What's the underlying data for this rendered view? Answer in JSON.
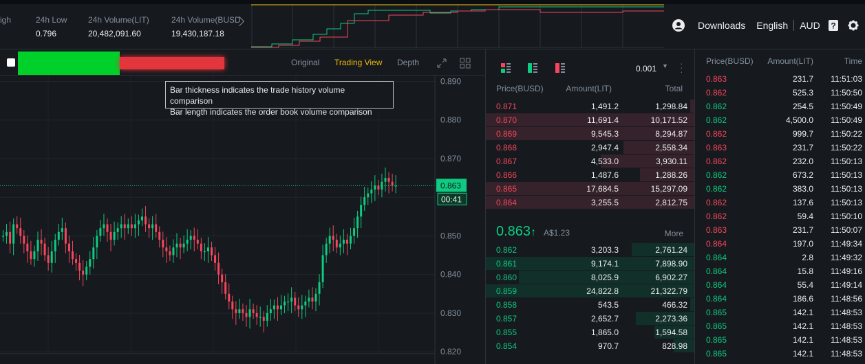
{
  "header": {
    "stats": [
      {
        "label": "igh",
        "value": "",
        "left": 0
      },
      {
        "label": "24h Low",
        "value": "0.796",
        "left": 52
      },
      {
        "label": "24h Volume(LIT)",
        "value": "20,482,091.60",
        "left": 128
      },
      {
        "label": "24h Volume(BUSD",
        "value": "19,430,187.18",
        "left": 249
      }
    ],
    "nav": {
      "downloads": "Downloads",
      "language": "English",
      "currency": "AUD"
    }
  },
  "toolbar": {
    "original": "Original",
    "trading_view": "Trading View",
    "depth": "Depth"
  },
  "tooltip": {
    "line1": "Bar thickness indicates the trade history volume comparison",
    "line2": "Bar length indicates the order book volume comparison"
  },
  "chart_data": {
    "type": "candlestick",
    "y_ticks": [
      "0.890",
      "0.880",
      "0.870",
      "0.860",
      "0.850",
      "0.840",
      "0.830",
      "0.820"
    ],
    "last_price_label": "0.863",
    "countdown_label": "00:41",
    "ylim": [
      0.8195,
      0.8915
    ]
  },
  "order_book": {
    "step": "0.001",
    "columns": {
      "price": "Price(BUSD)",
      "amount": "Amount(LIT)",
      "total": "Total"
    },
    "asks": [
      {
        "price": "0.871",
        "amount": "1,491.2",
        "total": "1,298.84",
        "depth": 0.02
      },
      {
        "price": "0.870",
        "amount": "11,691.4",
        "total": "10,171.52",
        "depth": 1.0
      },
      {
        "price": "0.869",
        "amount": "9,545.3",
        "total": "8,294.87",
        "depth": 1.0
      },
      {
        "price": "0.868",
        "amount": "2,947.4",
        "total": "2,558.34",
        "depth": 0.34
      },
      {
        "price": "0.867",
        "amount": "4,533.0",
        "total": "3,930.11",
        "depth": 0.45
      },
      {
        "price": "0.866",
        "amount": "1,487.6",
        "total": "1,288.26",
        "depth": 0.26
      },
      {
        "price": "0.865",
        "amount": "17,684.5",
        "total": "15,297.09",
        "depth": 1.0
      },
      {
        "price": "0.864",
        "amount": "3,255.5",
        "total": "2,812.75",
        "depth": 1.0
      }
    ],
    "last": {
      "price": "0.863",
      "arrow": "↑",
      "fiat": "A$1.23",
      "more": "More"
    },
    "bids": [
      {
        "price": "0.862",
        "amount": "3,203.3",
        "total": "2,761.24",
        "depth": 0.3
      },
      {
        "price": "0.861",
        "amount": "9,174.1",
        "total": "7,898.90",
        "depth": 1.0
      },
      {
        "price": "0.860",
        "amount": "8,025.9",
        "total": "6,902.27",
        "depth": 0.84
      },
      {
        "price": "0.859",
        "amount": "24,822.8",
        "total": "21,322.79",
        "depth": 1.0
      },
      {
        "price": "0.858",
        "amount": "543.5",
        "total": "466.32",
        "depth": 0.02
      },
      {
        "price": "0.857",
        "amount": "2,652.7",
        "total": "2,273.36",
        "depth": 0.28
      },
      {
        "price": "0.855",
        "amount": "1,865.0",
        "total": "1,594.58",
        "depth": 0.19
      },
      {
        "price": "0.854",
        "amount": "970.7",
        "total": "828.98",
        "depth": 0.1
      }
    ]
  },
  "trades": {
    "columns": {
      "price": "Price(BUSD)",
      "amount": "Amount(LIT)",
      "time": "Time"
    },
    "rows": [
      {
        "price": "0.863",
        "amount": "231.7",
        "time": "11:51:03",
        "side": "sell"
      },
      {
        "price": "0.862",
        "amount": "525.3",
        "time": "11:50:50",
        "side": "sell"
      },
      {
        "price": "0.862",
        "amount": "254.5",
        "time": "11:50:49",
        "side": "buy"
      },
      {
        "price": "0.862",
        "amount": "4,500.0",
        "time": "11:50:49",
        "side": "buy"
      },
      {
        "price": "0.862",
        "amount": "999.7",
        "time": "11:50:22",
        "side": "sell"
      },
      {
        "price": "0.863",
        "amount": "231.7",
        "time": "11:50:22",
        "side": "sell"
      },
      {
        "price": "0.862",
        "amount": "232.0",
        "time": "11:50:13",
        "side": "sell"
      },
      {
        "price": "0.862",
        "amount": "673.2",
        "time": "11:50:13",
        "side": "buy"
      },
      {
        "price": "0.862",
        "amount": "383.0",
        "time": "11:50:13",
        "side": "buy"
      },
      {
        "price": "0.862",
        "amount": "137.6",
        "time": "11:50:13",
        "side": "sell"
      },
      {
        "price": "0.862",
        "amount": "59.4",
        "time": "11:50:10",
        "side": "sell"
      },
      {
        "price": "0.863",
        "amount": "231.7",
        "time": "11:50:07",
        "side": "sell"
      },
      {
        "price": "0.864",
        "amount": "197.0",
        "time": "11:49:34",
        "side": "sell"
      },
      {
        "price": "0.864",
        "amount": "2.8",
        "time": "11:49:32",
        "side": "buy"
      },
      {
        "price": "0.864",
        "amount": "15.8",
        "time": "11:49:16",
        "side": "buy"
      },
      {
        "price": "0.864",
        "amount": "55.4",
        "time": "11:49:14",
        "side": "buy"
      },
      {
        "price": "0.864",
        "amount": "186.6",
        "time": "11:48:56",
        "side": "buy"
      },
      {
        "price": "0.865",
        "amount": "142.1",
        "time": "11:48:53",
        "side": "buy"
      },
      {
        "price": "0.865",
        "amount": "142.1",
        "time": "11:48:53",
        "side": "buy"
      },
      {
        "price": "0.865",
        "amount": "142.1",
        "time": "11:48:53",
        "side": "buy"
      },
      {
        "price": "0.865",
        "amount": "142.1",
        "time": "11:48:53",
        "side": "buy"
      }
    ]
  },
  "colors": {
    "up": "#0ecb81",
    "down": "#f6465d",
    "accent": "#f0b90b",
    "bg": "#161a1e"
  }
}
